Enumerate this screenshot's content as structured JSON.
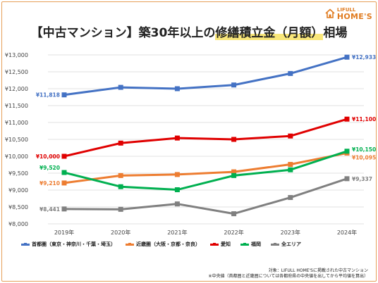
{
  "title": {
    "part1": "【中古マンション】築30年以上の",
    "highlight": "修繕積立金（月額）",
    "part2": "相場"
  },
  "logo": {
    "top": "LIFULL",
    "brand": "HOME'S"
  },
  "notes": [
    "対象：LIFULL HOME'Sに掲載された中古マンション",
    "※中央値（首都圏と近畿圏については各都府県の中央値を出してから平均値を算出）"
  ],
  "colors": {
    "shutoken": "#4472c4",
    "kinki": "#ed7d31",
    "aichi": "#e00000",
    "fukuoka": "#00b050",
    "all": "#808080",
    "frame": "#e6a05a"
  },
  "chart_data": {
    "type": "line",
    "x": [
      "2019年",
      "2020年",
      "2021年",
      "2022年",
      "2023年",
      "2024年"
    ],
    "ylim": [
      8000,
      13000
    ],
    "yticks": [
      "¥8,000",
      "¥8,500",
      "¥9,000",
      "¥9,500",
      "¥10,000",
      "¥10,500",
      "¥11,000",
      "¥11,500",
      "¥12,000",
      "¥12,500",
      "¥13,000"
    ],
    "ytick_values": [
      8000,
      8500,
      9000,
      9500,
      10000,
      10500,
      11000,
      11500,
      12000,
      12500,
      13000
    ],
    "grid": true,
    "legend_position": "bottom",
    "series": [
      {
        "key": "shutoken",
        "name": "首都圏（東京・神奈川・千葉・埼玉）",
        "values": [
          11818,
          12040,
          12000,
          12110,
          12450,
          12933
        ],
        "start_label": "¥11,818",
        "end_label": "¥12,933"
      },
      {
        "key": "kinki",
        "name": "近畿圏（大阪・京都・奈良）",
        "values": [
          9210,
          9430,
          9460,
          9540,
          9760,
          10095
        ],
        "start_label": "¥9,210",
        "end_label": "¥10,095"
      },
      {
        "key": "aichi",
        "name": "愛知",
        "values": [
          10000,
          10390,
          10540,
          10500,
          10600,
          11100
        ],
        "start_label": "¥10,000",
        "end_label": "¥11,100"
      },
      {
        "key": "fukuoka",
        "name": "福岡",
        "values": [
          9520,
          9100,
          9010,
          9430,
          9600,
          10150
        ],
        "start_label": "¥9,520",
        "end_label": "¥10,150"
      },
      {
        "key": "all",
        "name": "全エリア",
        "values": [
          8441,
          8430,
          8590,
          8300,
          8780,
          9337
        ],
        "start_label": "¥8,441",
        "end_label": "¥9,337"
      }
    ]
  }
}
